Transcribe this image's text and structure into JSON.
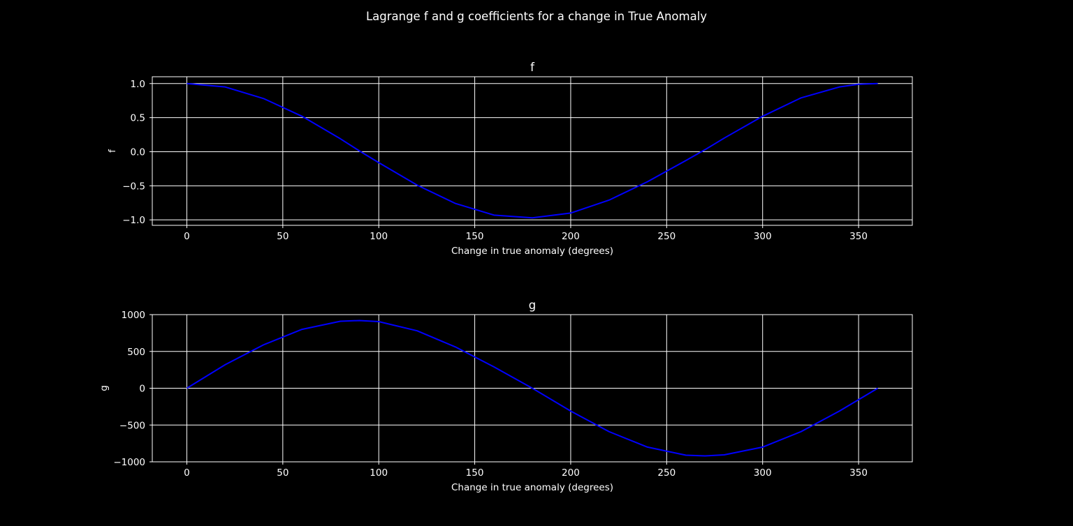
{
  "figure": {
    "title": "Lagrange f and g coefficients for a change in True Anomaly",
    "background": "#000000"
  },
  "chart_data": [
    {
      "type": "line",
      "title": "f",
      "xlabel": "Change in true anomaly (degrees)",
      "ylabel": "f",
      "xlim": [
        -18,
        378
      ],
      "ylim": [
        -1.08,
        1.1
      ],
      "xticks": [
        0,
        50,
        100,
        150,
        200,
        250,
        300,
        350
      ],
      "xtick_labels": [
        "0",
        "50",
        "100",
        "150",
        "200",
        "250",
        "300",
        "350"
      ],
      "yticks": [
        -1.0,
        -0.5,
        0.0,
        0.5,
        1.0
      ],
      "ytick_labels": [
        "−1.0",
        "−0.5",
        "0.0",
        "0.5",
        "1.0"
      ],
      "grid": true,
      "series": [
        {
          "color": "#0000ff",
          "x": [
            0,
            20,
            40,
            60,
            80,
            90,
            100,
            120,
            140,
            160,
            180,
            200,
            220,
            240,
            260,
            270,
            280,
            300,
            320,
            340,
            350,
            360
          ],
          "y": [
            1.0,
            0.95,
            0.78,
            0.52,
            0.19,
            0.01,
            -0.16,
            -0.49,
            -0.76,
            -0.93,
            -0.97,
            -0.9,
            -0.71,
            -0.44,
            -0.13,
            0.03,
            0.2,
            0.52,
            0.79,
            0.95,
            0.99,
            1.0
          ]
        }
      ]
    },
    {
      "type": "line",
      "title": "g",
      "xlabel": "Change in true anomaly (degrees)",
      "ylabel": "g",
      "xlim": [
        -18,
        378
      ],
      "ylim": [
        -1000,
        1000
      ],
      "xticks": [
        0,
        50,
        100,
        150,
        200,
        250,
        300,
        350
      ],
      "xtick_labels": [
        "0",
        "50",
        "100",
        "150",
        "200",
        "250",
        "300",
        "350"
      ],
      "yticks": [
        -1000,
        -500,
        0,
        500,
        1000
      ],
      "ytick_labels": [
        "−1000",
        "−500",
        "0",
        "500",
        "1000"
      ],
      "grid": true,
      "series": [
        {
          "color": "#0000ff",
          "x": [
            0,
            20,
            40,
            60,
            80,
            90,
            100,
            120,
            140,
            160,
            180,
            200,
            220,
            240,
            260,
            270,
            280,
            300,
            320,
            340,
            360
          ],
          "y": [
            0,
            320,
            590,
            800,
            910,
            920,
            905,
            780,
            560,
            290,
            0,
            -310,
            -590,
            -800,
            -910,
            -920,
            -905,
            -800,
            -590,
            -310,
            0
          ]
        }
      ]
    }
  ]
}
